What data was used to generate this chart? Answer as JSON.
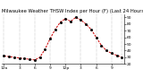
{
  "title": "Milwaukee Weather THSW Index per Hour (F) (Last 24 Hours)",
  "hours": [
    0,
    1,
    2,
    3,
    4,
    5,
    6,
    7,
    8,
    9,
    10,
    11,
    12,
    13,
    14,
    15,
    16,
    17,
    18,
    19,
    20,
    21,
    22,
    23
  ],
  "values": [
    32,
    31,
    30,
    29,
    28,
    27,
    26,
    30,
    42,
    58,
    72,
    83,
    88,
    84,
    90,
    86,
    80,
    72,
    60,
    48,
    40,
    36,
    33,
    30
  ],
  "line_color": "#cc0000",
  "marker_color": "#000000",
  "bg_color": "#ffffff",
  "grid_color": "#888888",
  "text_color": "#000000",
  "ylim": [
    20,
    95
  ],
  "ytick_vals": [
    20,
    30,
    40,
    50,
    60,
    70,
    80,
    90
  ],
  "tick_label_size": 3.2,
  "title_fontsize": 3.8,
  "gridline_positions": [
    0,
    3,
    6,
    9,
    12,
    15,
    18,
    21,
    23
  ]
}
